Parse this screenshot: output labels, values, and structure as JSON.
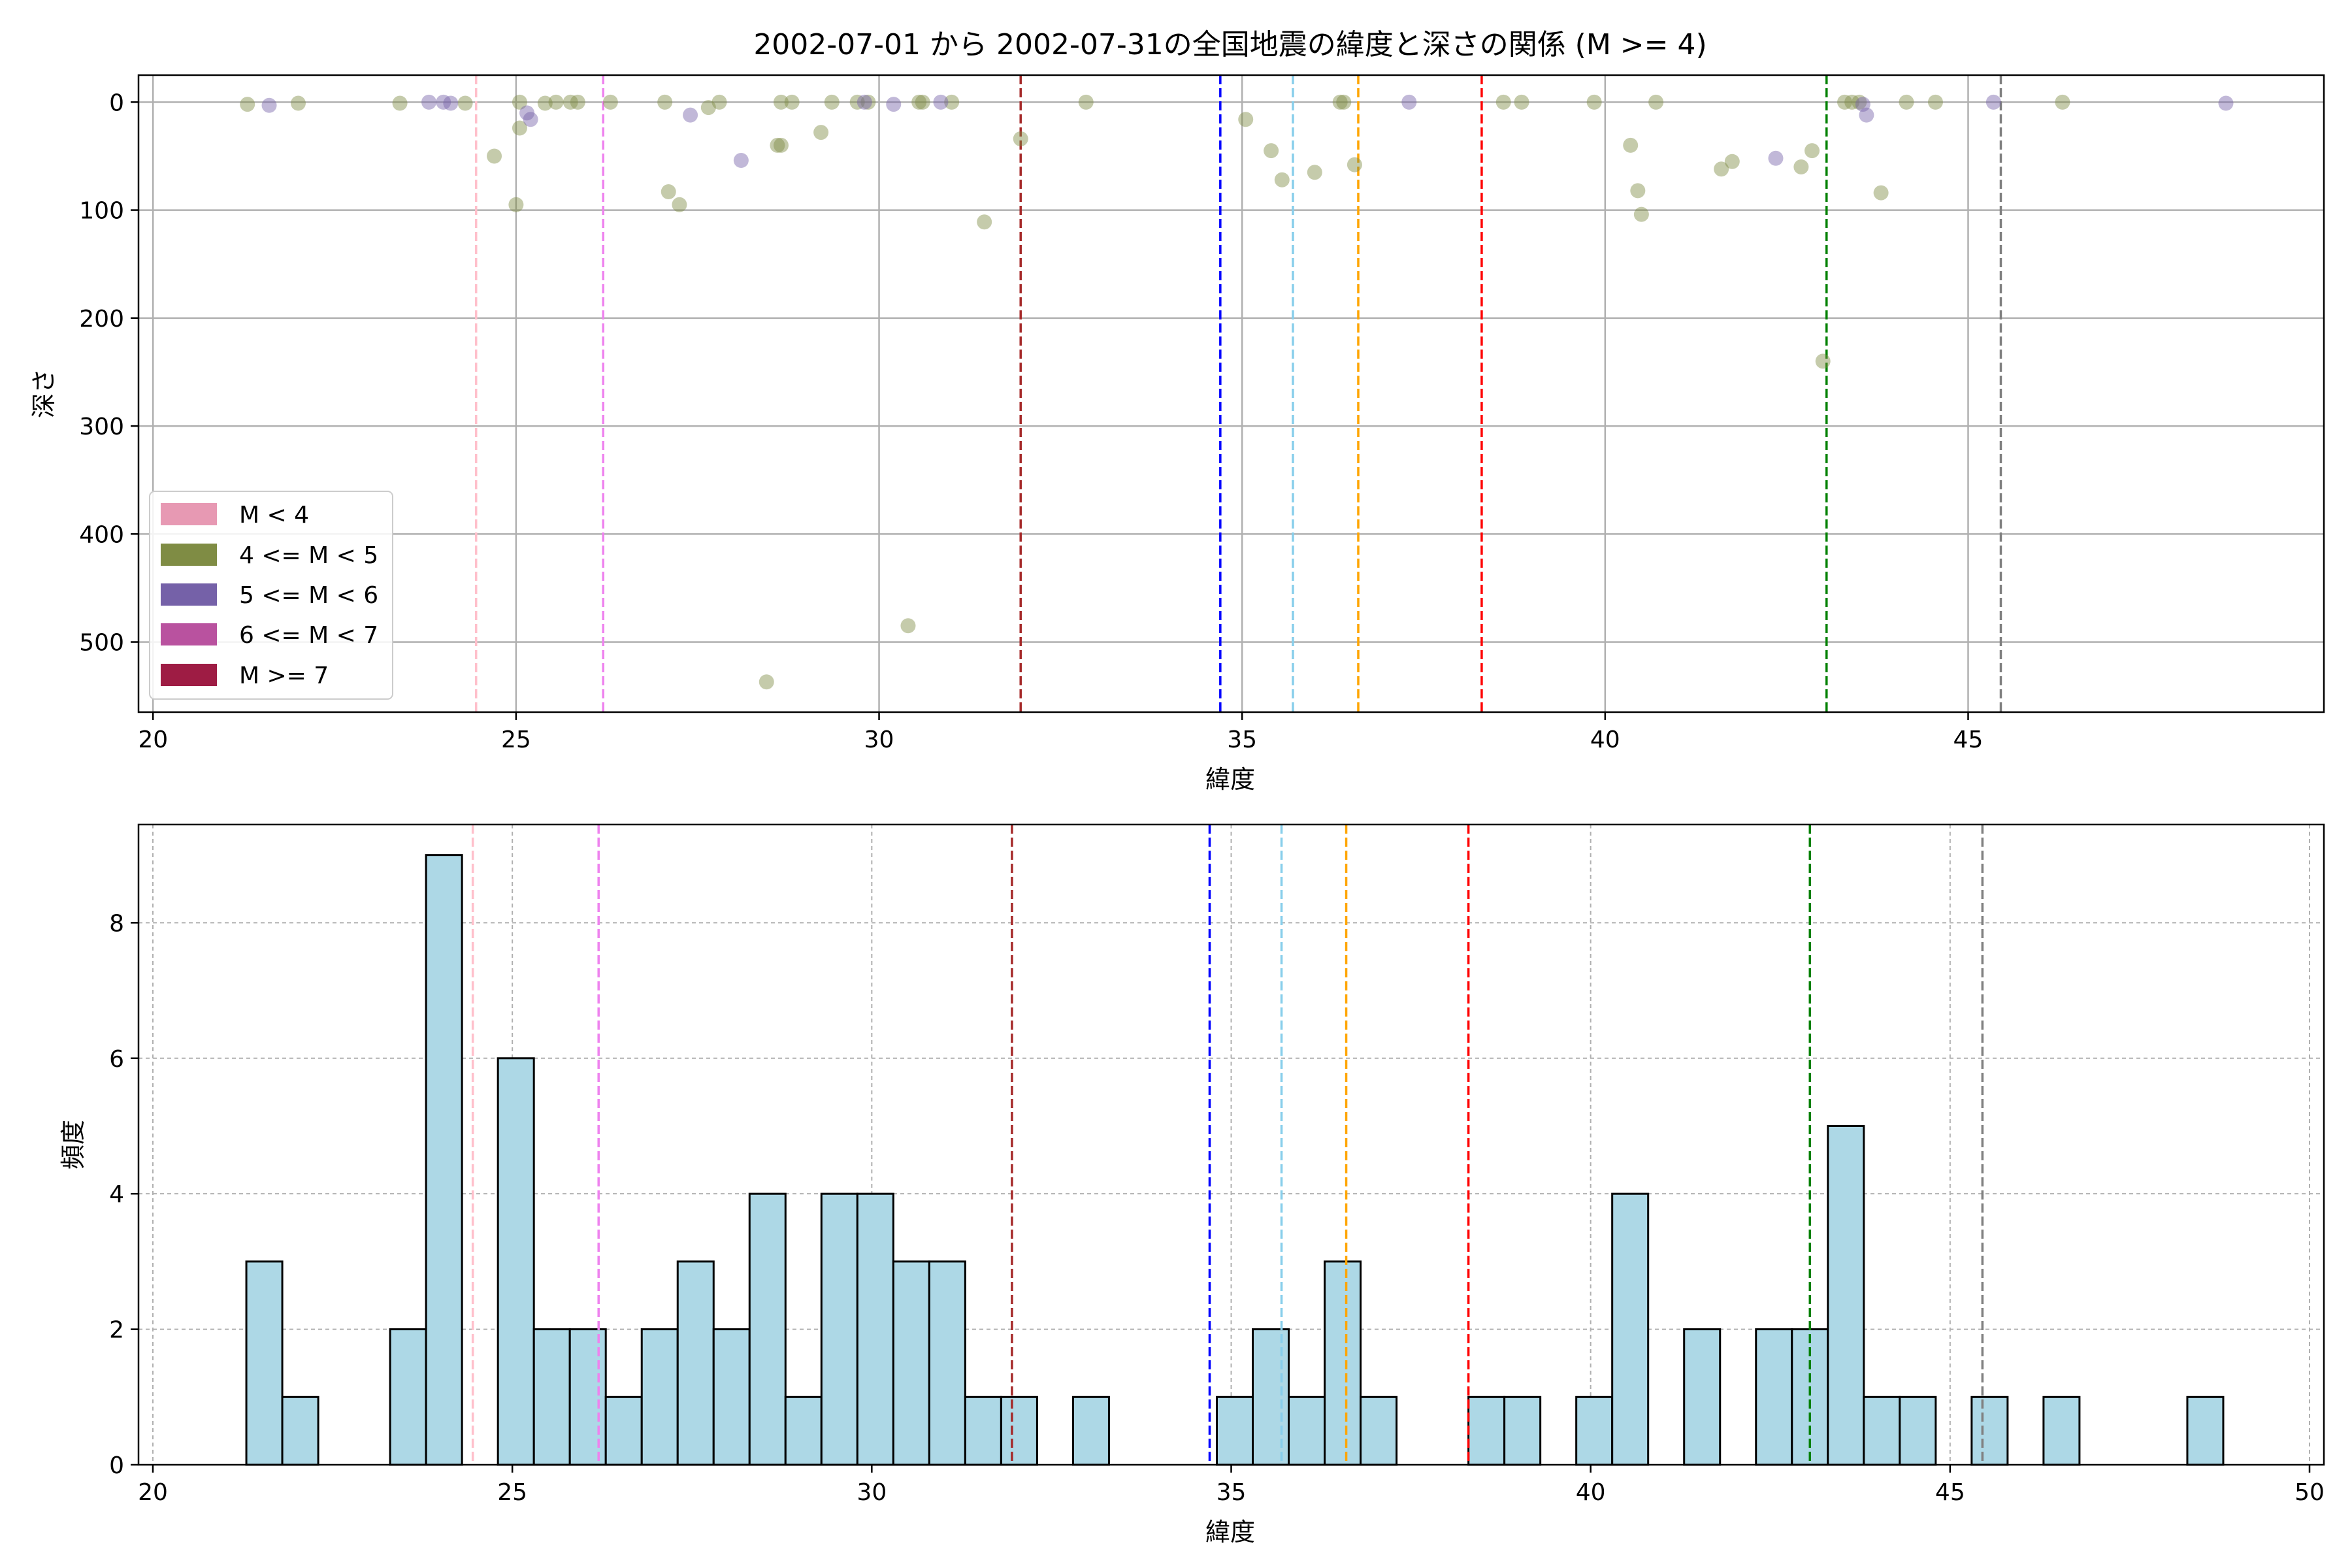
{
  "chart_data": [
    {
      "type": "scatter",
      "title": "2002-07-01 から 2002-07-31の全国地震の緯度と深さの関係 (M >= 4)",
      "xlabel": "緯度",
      "ylabel": "深さ",
      "xlim": [
        19.8,
        49.9
      ],
      "ylim": [
        565,
        -25
      ],
      "y_inverted": true,
      "grid": true,
      "xticks": [
        20,
        25,
        30,
        35,
        40,
        45
      ],
      "yticks": [
        0,
        100,
        200,
        300,
        400,
        500
      ],
      "legend_position": "lower-left",
      "legend": [
        {
          "label": "M < 4",
          "color": "#e799b3"
        },
        {
          "label": "4 <= M < 5",
          "color": "#7f8c44"
        },
        {
          "label": "5 <= M < 6",
          "color": "#7561a8"
        },
        {
          "label": "6 <= M < 7",
          "color": "#b9529f"
        },
        {
          "label": "M >= 7",
          "color": "#9e1c44"
        }
      ],
      "series": [
        {
          "name": "4 <= M < 5",
          "color": "#7f8c44",
          "points": [
            [
              21.3,
              2
            ],
            [
              22.0,
              1
            ],
            [
              23.4,
              1
            ],
            [
              24.3,
              1
            ],
            [
              24.7,
              50
            ],
            [
              25.0,
              95
            ],
            [
              25.05,
              24
            ],
            [
              25.05,
              0
            ],
            [
              25.4,
              1
            ],
            [
              25.55,
              0
            ],
            [
              25.75,
              0
            ],
            [
              25.85,
              0
            ],
            [
              26.3,
              0
            ],
            [
              27.05,
              0
            ],
            [
              27.1,
              83
            ],
            [
              27.25,
              95
            ],
            [
              27.65,
              5
            ],
            [
              27.8,
              0
            ],
            [
              28.6,
              40
            ],
            [
              28.65,
              40
            ],
            [
              28.65,
              0
            ],
            [
              28.8,
              0
            ],
            [
              29.2,
              28
            ],
            [
              29.35,
              0
            ],
            [
              29.7,
              0
            ],
            [
              29.85,
              0
            ],
            [
              30.4,
              485
            ],
            [
              30.55,
              0
            ],
            [
              30.6,
              0
            ],
            [
              31.0,
              0
            ],
            [
              31.45,
              111
            ],
            [
              31.95,
              34
            ],
            [
              32.85,
              0
            ],
            [
              35.05,
              16
            ],
            [
              35.4,
              45
            ],
            [
              35.55,
              72
            ],
            [
              36.0,
              65
            ],
            [
              36.35,
              0
            ],
            [
              36.4,
              0
            ],
            [
              36.55,
              58
            ],
            [
              38.6,
              0
            ],
            [
              38.85,
              0
            ],
            [
              39.85,
              0
            ],
            [
              40.35,
              40
            ],
            [
              40.45,
              82
            ],
            [
              40.5,
              104
            ],
            [
              40.7,
              0
            ],
            [
              41.6,
              62
            ],
            [
              41.75,
              55
            ],
            [
              42.7,
              60
            ],
            [
              42.85,
              45
            ],
            [
              43.0,
              240
            ],
            [
              43.3,
              0
            ],
            [
              43.4,
              0
            ],
            [
              43.5,
              0
            ],
            [
              43.8,
              84
            ],
            [
              44.15,
              0
            ],
            [
              44.55,
              0
            ],
            [
              46.3,
              0
            ],
            [
              28.45,
              537
            ]
          ]
        },
        {
          "name": "5 <= M < 6",
          "color": "#7561a8",
          "points": [
            [
              21.6,
              3
            ],
            [
              23.8,
              0
            ],
            [
              24.0,
              0
            ],
            [
              24.1,
              1
            ],
            [
              25.15,
              10
            ],
            [
              25.2,
              16
            ],
            [
              27.4,
              12
            ],
            [
              28.1,
              54
            ],
            [
              29.8,
              0
            ],
            [
              30.2,
              2
            ],
            [
              30.85,
              0
            ],
            [
              37.3,
              0
            ],
            [
              42.35,
              52
            ],
            [
              43.55,
              2
            ],
            [
              43.6,
              12
            ],
            [
              45.35,
              0
            ],
            [
              48.55,
              1
            ]
          ]
        }
      ],
      "vlines": [
        {
          "x": 24.45,
          "color": "#ffc0cb"
        },
        {
          "x": 26.2,
          "color": "#ee82ee"
        },
        {
          "x": 31.95,
          "color": "#a52a2a"
        },
        {
          "x": 34.7,
          "color": "#0000ff"
        },
        {
          "x": 35.7,
          "color": "#87ceeb"
        },
        {
          "x": 36.6,
          "color": "#ffa500"
        },
        {
          "x": 38.3,
          "color": "#ff0000"
        },
        {
          "x": 43.05,
          "color": "#008000"
        },
        {
          "x": 45.45,
          "color": "#808080"
        }
      ]
    },
    {
      "type": "bar",
      "subtype": "histogram",
      "xlabel": "緯度",
      "ylabel": "頻度",
      "xlim": [
        19.8,
        50.2
      ],
      "ylim": [
        0,
        9.45
      ],
      "grid": true,
      "xticks": [
        20,
        25,
        30,
        35,
        40,
        45,
        50
      ],
      "yticks": [
        0,
        2,
        4,
        6,
        8
      ],
      "bar_color": "#add8e6",
      "bin_start": 21.3,
      "bin_width": 0.5,
      "values": [
        3,
        1,
        0,
        0,
        2,
        9,
        0,
        6,
        2,
        2,
        1,
        2,
        3,
        2,
        4,
        1,
        4,
        4,
        3,
        3,
        1,
        1,
        0,
        1,
        0,
        0,
        0,
        1,
        2,
        1,
        3,
        1,
        0,
        0,
        1,
        1,
        0,
        1,
        4,
        0,
        2,
        0,
        2,
        2,
        5,
        1,
        1,
        0,
        1,
        0,
        1,
        0,
        0,
        0,
        1
      ],
      "vlines": [
        {
          "x": 24.45,
          "color": "#ffc0cb"
        },
        {
          "x": 26.2,
          "color": "#ee82ee"
        },
        {
          "x": 31.95,
          "color": "#a52a2a"
        },
        {
          "x": 34.7,
          "color": "#0000ff"
        },
        {
          "x": 35.7,
          "color": "#87ceeb"
        },
        {
          "x": 36.6,
          "color": "#ffa500"
        },
        {
          "x": 38.3,
          "color": "#ff0000"
        },
        {
          "x": 43.05,
          "color": "#008000"
        },
        {
          "x": 45.45,
          "color": "#808080"
        }
      ]
    }
  ]
}
